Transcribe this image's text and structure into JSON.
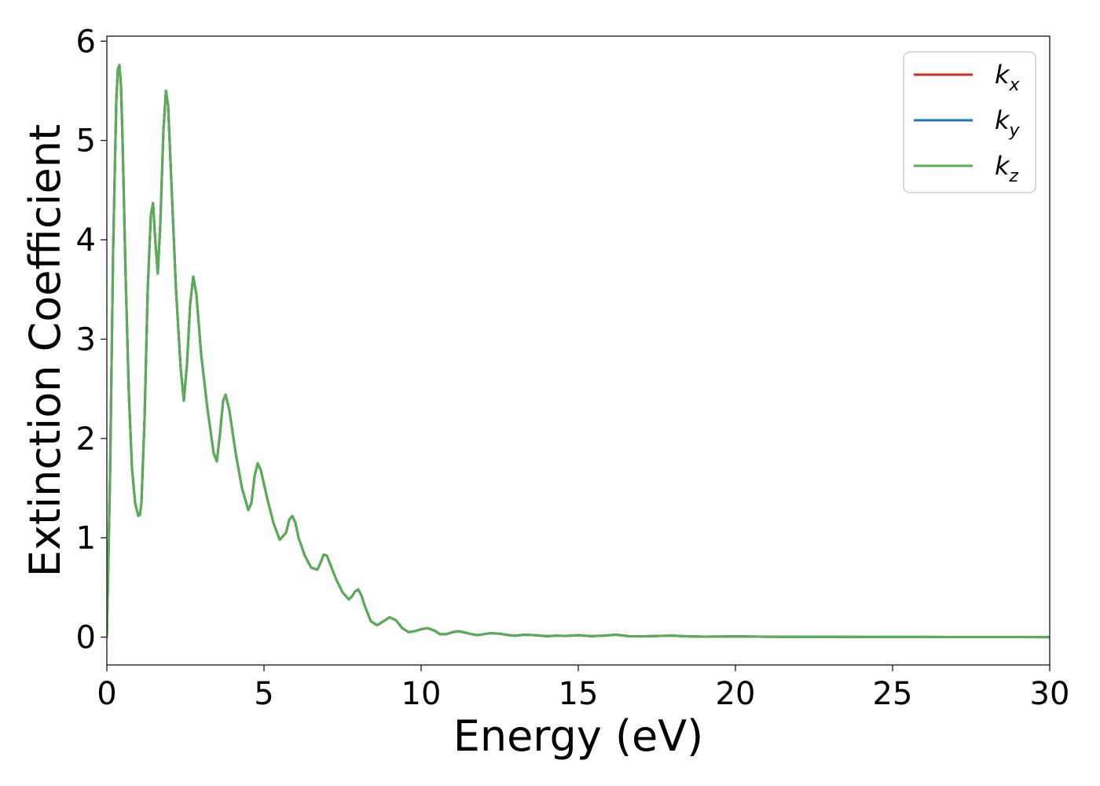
{
  "chart_data": {
    "type": "line",
    "title": "",
    "xlabel": "Energy (eV)",
    "ylabel": "Extinction Coefficient",
    "xlim": [
      0,
      30
    ],
    "ylim": [
      -0.28,
      6.05
    ],
    "xticks": [
      0,
      5,
      10,
      15,
      20,
      25,
      30
    ],
    "yticks": [
      0,
      1,
      2,
      3,
      4,
      5,
      6
    ],
    "grid": false,
    "legend_position": "top-right",
    "series": [
      {
        "name": "k_x",
        "label_main": "k",
        "label_sub": "x",
        "color": "#d62728",
        "x": [
          0,
          0.1,
          0.2,
          0.3,
          0.35,
          0.4,
          0.45,
          0.5,
          0.6,
          0.7,
          0.8,
          0.9,
          1.0,
          1.05,
          1.1,
          1.2,
          1.3,
          1.4,
          1.47,
          1.55,
          1.62,
          1.7,
          1.8,
          1.88,
          1.95,
          2.05,
          2.2,
          2.35,
          2.45,
          2.55,
          2.65,
          2.75,
          2.85,
          3.0,
          3.2,
          3.4,
          3.5,
          3.6,
          3.7,
          3.78,
          3.9,
          4.1,
          4.3,
          4.5,
          4.6,
          4.7,
          4.8,
          4.9,
          5.1,
          5.3,
          5.5,
          5.7,
          5.8,
          5.9,
          6.0,
          6.1,
          6.3,
          6.5,
          6.7,
          6.8,
          6.9,
          7.0,
          7.1,
          7.3,
          7.5,
          7.7,
          7.8,
          7.9,
          8.0,
          8.1,
          8.2,
          8.4,
          8.6,
          8.8,
          9.0,
          9.2,
          9.4,
          9.6,
          9.8,
          10.0,
          10.2,
          10.4,
          10.6,
          10.8,
          11.0,
          11.2,
          11.4,
          11.6,
          11.8,
          12.0,
          12.2,
          12.5,
          12.8,
          13.0,
          13.3,
          13.6,
          14.0,
          14.3,
          14.6,
          15.0,
          15.4,
          15.8,
          16.2,
          16.6,
          17.0,
          17.5,
          18.0,
          18.5,
          19.0,
          19.5,
          20.0,
          21.0,
          22.0,
          23.0,
          24.0,
          25.0,
          26.0,
          27.0,
          28.0,
          29.0,
          30.0
        ],
        "y": [
          0.0,
          1.6,
          3.9,
          5.4,
          5.72,
          5.76,
          5.55,
          5.0,
          3.6,
          2.45,
          1.7,
          1.35,
          1.22,
          1.23,
          1.35,
          2.2,
          3.5,
          4.25,
          4.37,
          3.95,
          3.66,
          4.15,
          5.1,
          5.5,
          5.35,
          4.6,
          3.5,
          2.7,
          2.38,
          2.75,
          3.35,
          3.63,
          3.45,
          2.85,
          2.3,
          1.85,
          1.77,
          2.05,
          2.38,
          2.44,
          2.28,
          1.85,
          1.5,
          1.28,
          1.35,
          1.62,
          1.75,
          1.68,
          1.4,
          1.15,
          0.98,
          1.05,
          1.18,
          1.22,
          1.15,
          1.0,
          0.82,
          0.7,
          0.68,
          0.75,
          0.83,
          0.82,
          0.74,
          0.58,
          0.45,
          0.38,
          0.41,
          0.46,
          0.48,
          0.42,
          0.32,
          0.16,
          0.12,
          0.16,
          0.2,
          0.17,
          0.09,
          0.05,
          0.06,
          0.08,
          0.09,
          0.07,
          0.03,
          0.03,
          0.05,
          0.06,
          0.045,
          0.03,
          0.02,
          0.03,
          0.04,
          0.035,
          0.02,
          0.015,
          0.025,
          0.02,
          0.01,
          0.015,
          0.012,
          0.02,
          0.01,
          0.015,
          0.025,
          0.01,
          0.008,
          0.012,
          0.015,
          0.008,
          0.005,
          0.006,
          0.008,
          0.004,
          0.003,
          0.003,
          0.002,
          0.002,
          0.002,
          0.001,
          0.001,
          0.001,
          0.0
        ]
      },
      {
        "name": "k_y",
        "label_main": "k",
        "label_sub": "y",
        "color": "#1f77b4",
        "same_as": "k_x"
      },
      {
        "name": "k_z",
        "label_main": "k",
        "label_sub": "z",
        "color": "#5aad54",
        "same_as": "k_x"
      }
    ]
  }
}
